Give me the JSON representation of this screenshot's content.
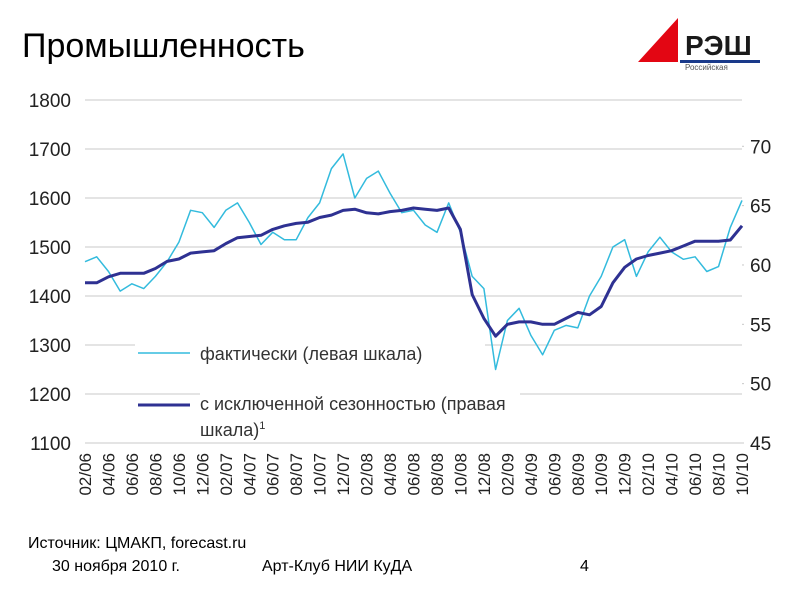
{
  "header": {
    "title": "Промышленность",
    "logo": "РЭШ",
    "logo_subtitle": "Российская"
  },
  "chart_data": {
    "type": "line",
    "categories": [
      "02/06",
      null,
      "04/06",
      null,
      "06/06",
      null,
      "08/06",
      null,
      "10/06",
      null,
      "12/06",
      null,
      "02/07",
      null,
      "04/07",
      null,
      "06/07",
      null,
      "08/07",
      null,
      "10/07",
      null,
      "12/07",
      null,
      "02/08",
      null,
      "04/08",
      null,
      "06/08",
      null,
      "08/08",
      null,
      "10/08",
      null,
      "12/08",
      null,
      "02/09",
      null,
      "04/09",
      null,
      "06/09",
      null,
      "08/09",
      null,
      "10/09",
      null,
      "12/09",
      null,
      "02/10",
      null,
      "04/10",
      null,
      "06/10",
      null,
      "08/10",
      null,
      "10/10"
    ],
    "series": [
      {
        "name": "фактически (левая шкала)",
        "color": "#33bbdd",
        "values": [
          1470,
          1480,
          1450,
          1410,
          1425,
          1415,
          1440,
          1470,
          1510,
          1575,
          1570,
          1540,
          1575,
          1590,
          1550,
          1505,
          1530,
          1515,
          1515,
          1560,
          1590,
          1660,
          1690,
          1600,
          1640,
          1655,
          1610,
          1570,
          1575,
          1545,
          1530,
          1590,
          1530,
          1440,
          1415,
          1250,
          1350,
          1375,
          1320,
          1280,
          1330,
          1340,
          1335,
          1400,
          1440,
          1500,
          1515,
          1440,
          1490,
          1520,
          1490,
          1475,
          1480,
          1450,
          1460,
          1540,
          1595
        ]
      },
      {
        "name": "с исключенной сезонностью (правая шкала)",
        "color": "#2e3192",
        "axis": "y2",
        "note": "1",
        "values": [
          58.5,
          58.5,
          59,
          59.3,
          59.3,
          59.3,
          59.7,
          60.3,
          60.5,
          61,
          61.1,
          61.2,
          61.8,
          62.3,
          62.4,
          62.5,
          63,
          63.3,
          63.5,
          63.6,
          64,
          64.2,
          64.6,
          64.7,
          64.4,
          64.3,
          64.5,
          64.6,
          64.8,
          64.7,
          64.6,
          64.8,
          63,
          57.5,
          55.5,
          54,
          55,
          55.2,
          55.2,
          55,
          55,
          55.5,
          56,
          55.8,
          56.5,
          58.5,
          59.8,
          60.5,
          60.8,
          61,
          61.2,
          61.6,
          62,
          62,
          62,
          62.1,
          63.3
        ]
      }
    ],
    "ylim": [
      1100,
      1800
    ],
    "yticks": [
      1100,
      1200,
      1300,
      1400,
      1500,
      1600,
      1700,
      1800
    ],
    "y2lim": [
      45,
      73.9
    ],
    "y2ticks": [
      45,
      50,
      55,
      60,
      65,
      70
    ],
    "grid": true
  },
  "footer": {
    "source": "Источник: ЦМАКП, forecast.ru",
    "date": "30 ноября 2010 г.",
    "event": "Арт-Клуб НИИ КуДА",
    "page": "4"
  }
}
